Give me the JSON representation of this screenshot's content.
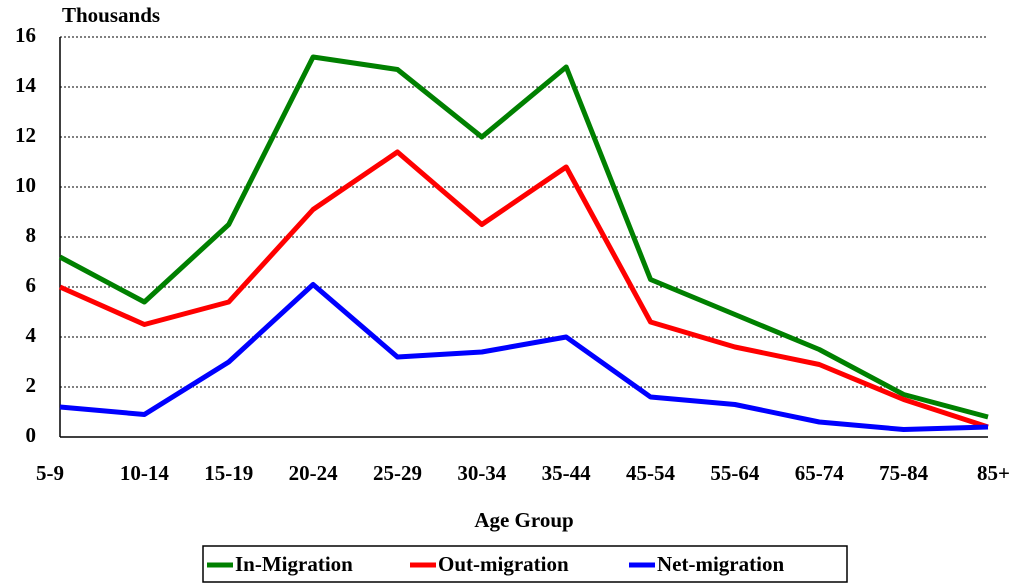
{
  "chart_data": {
    "type": "line",
    "y_label": "Thousands",
    "x_label": "Age Group",
    "categories": [
      "5-9",
      "10-14",
      "15-19",
      "20-24",
      "25-29",
      "30-34",
      "35-44",
      "45-54",
      "55-64",
      "65-74",
      "75-84",
      "85+"
    ],
    "series": [
      {
        "name": "In-Migration",
        "color": "#008000",
        "values": [
          7.2,
          5.4,
          8.5,
          15.2,
          14.7,
          12.0,
          14.8,
          6.3,
          4.9,
          3.5,
          1.7,
          0.8
        ]
      },
      {
        "name": "Out-migration",
        "color": "#ff0000",
        "values": [
          6.0,
          4.5,
          5.4,
          9.1,
          11.4,
          8.5,
          10.8,
          4.6,
          3.6,
          2.9,
          1.5,
          0.4
        ]
      },
      {
        "name": "Net-migration",
        "color": "#0000ff",
        "values": [
          1.2,
          0.9,
          3.0,
          6.1,
          3.2,
          3.4,
          4.0,
          1.6,
          1.3,
          0.6,
          0.3,
          0.4
        ]
      }
    ],
    "ylim": [
      0,
      16
    ],
    "yticks": [
      0,
      2,
      4,
      6,
      8,
      10,
      12,
      14,
      16
    ],
    "grid": true
  }
}
